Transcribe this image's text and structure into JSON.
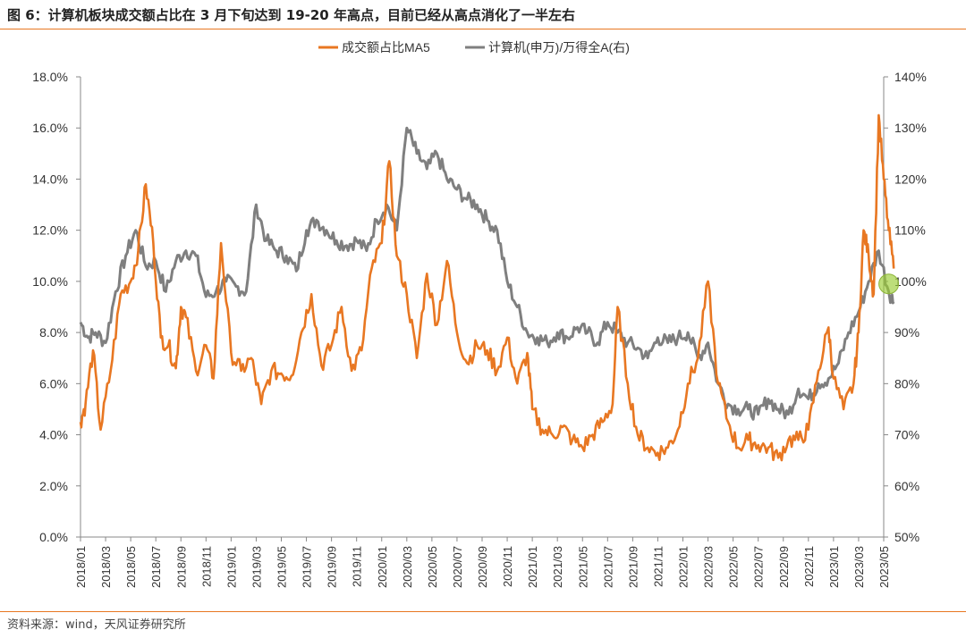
{
  "title": "图 6：计算机板块成交额占比在 3 月下旬达到 19-20 年高点，目前已经从高点消化了一半左右",
  "source": "资料来源：wind，天风证券研究所",
  "colors": {
    "series1": "#E87722",
    "series2": "#7F7F7F",
    "rule": "#E87722",
    "marker": "#9ACD32"
  },
  "chart_data": {
    "type": "line",
    "legend_position": "top-center",
    "y_left": {
      "min": 0,
      "max": 18,
      "step": 2,
      "ticks": [
        "0.0%",
        "2.0%",
        "4.0%",
        "6.0%",
        "8.0%",
        "10.0%",
        "12.0%",
        "14.0%",
        "16.0%",
        "18.0%"
      ]
    },
    "y_right": {
      "min": 50,
      "max": 140,
      "step": 10,
      "ticks": [
        "50%",
        "60%",
        "70%",
        "80%",
        "90%",
        "100%",
        "110%",
        "120%",
        "130%",
        "140%"
      ]
    },
    "x_ticks": [
      "2018/01",
      "2018/03",
      "2018/05",
      "2018/07",
      "2018/09",
      "2018/11",
      "2019/01",
      "2019/03",
      "2019/05",
      "2019/07",
      "2019/09",
      "2019/11",
      "2020/01",
      "2020/03",
      "2020/05",
      "2020/07",
      "2020/09",
      "2020/11",
      "2021/01",
      "2021/03",
      "2021/05",
      "2021/07",
      "2021/09",
      "2021/11",
      "2022/01",
      "2022/03",
      "2022/05",
      "2022/07",
      "2022/09",
      "2022/11",
      "2023/01",
      "2023/03",
      "2023/05"
    ],
    "series": [
      {
        "name": "成交额占比MA5",
        "axis": "left",
        "x": [
          0,
          0.2,
          0.5,
          0.8,
          1.2,
          1.6,
          2.0,
          2.3,
          2.6,
          2.9,
          3.2,
          3.5,
          3.8,
          4.0,
          4.2,
          4.6,
          5.0,
          5.3,
          5.6,
          6.0,
          6.4,
          6.8,
          7.2,
          7.6,
          8.0,
          8.4,
          8.8,
          9.2,
          9.6,
          10.0,
          10.4,
          10.8,
          11.2,
          11.6,
          12.0,
          12.3,
          12.6,
          13.0,
          13.4,
          13.8,
          14.2,
          14.6,
          15.0,
          15.4,
          15.8,
          16.2,
          16.6,
          17.0,
          17.4,
          17.8,
          18.0,
          18.4,
          18.8,
          19.2,
          19.6,
          20.0,
          20.4,
          20.8,
          21.2,
          21.4,
          21.8,
          22.2,
          22.6,
          23.0,
          23.4,
          23.8,
          24.2,
          24.6,
          25.0,
          25.4,
          25.8,
          26.2,
          26.6,
          27.0,
          27.4,
          27.8,
          28.2,
          28.6,
          29.0,
          29.4,
          29.8,
          30.0,
          30.4,
          30.8,
          31.0,
          31.2,
          31.4,
          31.6,
          31.8,
          32.0,
          32.2,
          32.4
        ],
        "values": [
          4.5,
          5.2,
          7.3,
          4.2,
          6.5,
          9.5,
          10.0,
          11.2,
          13.8,
          11.5,
          7.8,
          7.5,
          6.6,
          9.0,
          8.6,
          6.5,
          7.5,
          6.2,
          11.5,
          7.2,
          6.5,
          7.0,
          5.2,
          6.5,
          6.4,
          6.3,
          8.0,
          9.5,
          6.7,
          7.5,
          9.0,
          6.5,
          7.3,
          10.5,
          11.5,
          14.7,
          11.0,
          9.5,
          7.0,
          10.3,
          8.3,
          10.8,
          8.0,
          6.8,
          7.5,
          7.3,
          6.5,
          7.8,
          6.0,
          7.2,
          5.0,
          4.2,
          4.0,
          4.3,
          3.8,
          3.5,
          4.0,
          4.5,
          5.2,
          9.0,
          6.0,
          4.0,
          3.5,
          3.3,
          3.5,
          4.2,
          6.0,
          7.0,
          10.0,
          6.0,
          4.5,
          3.5,
          3.8,
          3.6,
          3.5,
          3.1,
          3.8,
          3.8,
          4.2,
          6.5,
          8.2,
          6.2,
          5.0,
          6.0,
          8.0,
          12.0,
          11.0,
          9.5,
          16.5,
          14.0,
          12.0,
          10.5
        ]
      },
      {
        "name": "计算机(申万)/万得全A(右)",
        "axis": "right",
        "x": [
          0,
          0.3,
          0.6,
          1.0,
          1.4,
          1.8,
          2.2,
          2.6,
          3.0,
          3.4,
          3.8,
          4.2,
          4.6,
          5.0,
          5.4,
          5.8,
          6.2,
          6.6,
          7.0,
          7.4,
          7.8,
          8.2,
          8.6,
          9.0,
          9.4,
          9.8,
          10.2,
          10.6,
          11.0,
          11.4,
          11.8,
          12.2,
          12.6,
          13.0,
          13.4,
          13.8,
          14.2,
          14.6,
          15.0,
          15.4,
          15.8,
          16.2,
          16.6,
          17.0,
          17.4,
          17.8,
          18.2,
          18.6,
          19.0,
          19.4,
          19.8,
          20.2,
          20.6,
          21.0,
          21.4,
          21.8,
          22.2,
          22.6,
          23.0,
          23.4,
          23.8,
          24.2,
          24.6,
          25.0,
          25.4,
          25.8,
          26.2,
          26.6,
          27.0,
          27.4,
          27.8,
          28.2,
          28.6,
          29.0,
          29.4,
          29.8,
          30.2,
          30.6,
          31.0,
          31.4,
          31.8,
          32.2,
          32.4
        ],
        "values": [
          92,
          89,
          90,
          88,
          98,
          105,
          110,
          103,
          104,
          98,
          104,
          106,
          105,
          97,
          98,
          100,
          99,
          98,
          115,
          108,
          106,
          105,
          102,
          110,
          112,
          110,
          108,
          107,
          108,
          106,
          112,
          115,
          110,
          130,
          125,
          122,
          125,
          120,
          118,
          116,
          115,
          112,
          110,
          100,
          95,
          90,
          89,
          88,
          90,
          89,
          91,
          90,
          88,
          92,
          90,
          88,
          87,
          85,
          89,
          88,
          89,
          90,
          85,
          88,
          80,
          76,
          75,
          75,
          74,
          77,
          75,
          74,
          79,
          77,
          80,
          81,
          84,
          90,
          94,
          100,
          106,
          98,
          96
        ]
      }
    ]
  }
}
